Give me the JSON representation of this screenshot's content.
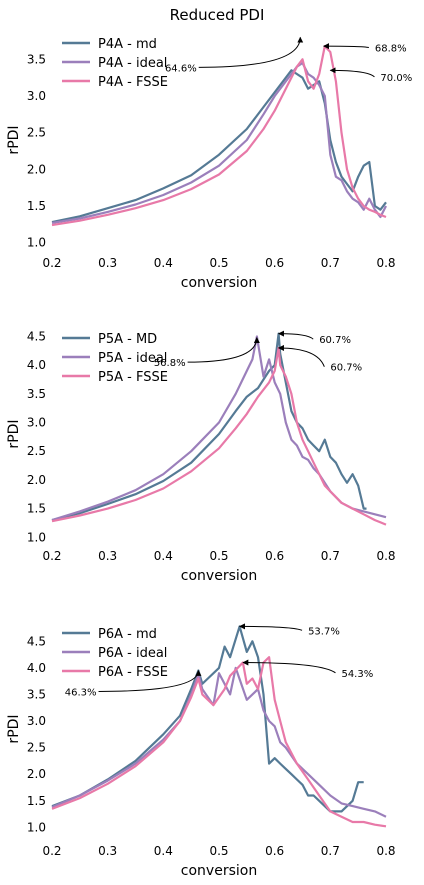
{
  "figure_title": "Reduced PDI",
  "colors": {
    "md": "#557a95",
    "ideal": "#9b7fbb",
    "fsse": "#e879a8"
  },
  "chart_data": [
    {
      "type": "line",
      "xlabel": "conversion",
      "ylabel": "rPDI",
      "xlim": [
        0.2,
        0.8
      ],
      "ylim": [
        0.9,
        3.9
      ],
      "xticks": [
        0.2,
        0.3,
        0.4,
        0.5,
        0.6,
        0.7,
        0.8
      ],
      "xtick_labels": [
        "0.2",
        "0.3",
        "0.4",
        "0.5",
        "0.6",
        "0.7",
        "0.8"
      ],
      "yticks": [
        1.0,
        1.5,
        2.0,
        2.5,
        3.0,
        3.5
      ],
      "ytick_labels": [
        "1.0",
        "1.5",
        "2.0",
        "2.5",
        "3.0",
        "3.5"
      ],
      "grid": false,
      "legend_position": "top-left",
      "series": [
        {
          "name": "P4A - md",
          "color_key": "md",
          "x": [
            0.2,
            0.25,
            0.3,
            0.35,
            0.4,
            0.45,
            0.5,
            0.55,
            0.58,
            0.6,
            0.62,
            0.63,
            0.64,
            0.65,
            0.66,
            0.67,
            0.68,
            0.69,
            0.7,
            0.71,
            0.72,
            0.73,
            0.74,
            0.75,
            0.76,
            0.77,
            0.78,
            0.79,
            0.8
          ],
          "y": [
            1.28,
            1.36,
            1.47,
            1.58,
            1.74,
            1.92,
            2.2,
            2.55,
            2.85,
            3.05,
            3.25,
            3.35,
            3.3,
            3.25,
            3.1,
            3.15,
            3.2,
            2.9,
            2.4,
            2.1,
            1.9,
            1.8,
            1.7,
            1.9,
            2.05,
            2.1,
            1.5,
            1.45,
            1.55
          ]
        },
        {
          "name": "P4A - ideal",
          "color_key": "ideal",
          "x": [
            0.2,
            0.25,
            0.3,
            0.35,
            0.4,
            0.45,
            0.5,
            0.55,
            0.58,
            0.6,
            0.62,
            0.63,
            0.64,
            0.65,
            0.66,
            0.67,
            0.68,
            0.69,
            0.7,
            0.71,
            0.72,
            0.73,
            0.74,
            0.75,
            0.76,
            0.77,
            0.78,
            0.79,
            0.8
          ],
          "y": [
            1.27,
            1.33,
            1.42,
            1.52,
            1.65,
            1.82,
            2.05,
            2.4,
            2.75,
            3.0,
            3.2,
            3.3,
            3.4,
            3.45,
            3.3,
            3.25,
            3.15,
            3.0,
            2.2,
            1.9,
            1.85,
            1.7,
            1.6,
            1.55,
            1.45,
            1.6,
            1.45,
            1.35,
            1.5
          ]
        },
        {
          "name": "P4A - FSSE",
          "color_key": "fsse",
          "x": [
            0.2,
            0.25,
            0.3,
            0.35,
            0.4,
            0.45,
            0.5,
            0.55,
            0.58,
            0.6,
            0.62,
            0.64,
            0.65,
            0.66,
            0.67,
            0.68,
            0.69,
            0.7,
            0.71,
            0.72,
            0.73,
            0.74,
            0.75,
            0.76,
            0.77,
            0.78,
            0.79,
            0.8
          ],
          "y": [
            1.24,
            1.3,
            1.38,
            1.47,
            1.58,
            1.73,
            1.93,
            2.25,
            2.55,
            2.8,
            3.1,
            3.4,
            3.5,
            3.2,
            3.1,
            3.3,
            3.68,
            3.6,
            3.2,
            2.5,
            2.0,
            1.75,
            1.6,
            1.5,
            1.45,
            1.42,
            1.38,
            1.35
          ]
        }
      ],
      "annotations": [
        {
          "text": "64.6%",
          "x": 0.646,
          "y": 3.8,
          "text_x": 0.46,
          "text_y": 3.35
        },
        {
          "text": "68.8%",
          "x": 0.688,
          "y": 3.68,
          "text_x": 0.78,
          "text_y": 3.62
        },
        {
          "text": "70.0%",
          "x": 0.7,
          "y": 3.35,
          "text_x": 0.79,
          "text_y": 3.22
        }
      ]
    },
    {
      "type": "line",
      "xlabel": "conversion",
      "ylabel": "rPDI",
      "xlim": [
        0.2,
        0.8
      ],
      "ylim": [
        0.9,
        4.7
      ],
      "xticks": [
        0.2,
        0.3,
        0.4,
        0.5,
        0.6,
        0.7,
        0.8
      ],
      "xtick_labels": [
        "0.2",
        "0.3",
        "0.4",
        "0.5",
        "0.6",
        "0.7",
        "0.8"
      ],
      "yticks": [
        1.0,
        1.5,
        2.0,
        2.5,
        3.0,
        3.5,
        4.0,
        4.5
      ],
      "ytick_labels": [
        "1.0",
        "1.5",
        "2.0",
        "2.5",
        "3.0",
        "3.5",
        "4.0",
        "4.5"
      ],
      "grid": false,
      "legend_position": "top-left",
      "series": [
        {
          "name": "P5A - MD",
          "color_key": "md",
          "x": [
            0.2,
            0.25,
            0.3,
            0.35,
            0.4,
            0.45,
            0.5,
            0.53,
            0.55,
            0.57,
            0.58,
            0.59,
            0.6,
            0.607,
            0.61,
            0.62,
            0.63,
            0.64,
            0.65,
            0.66,
            0.67,
            0.68,
            0.69,
            0.7,
            0.71,
            0.72,
            0.73,
            0.74,
            0.75,
            0.76,
            0.765
          ],
          "y": [
            1.3,
            1.42,
            1.58,
            1.75,
            1.98,
            2.3,
            2.8,
            3.2,
            3.45,
            3.6,
            3.75,
            3.9,
            4.0,
            4.55,
            4.2,
            3.7,
            3.2,
            3.0,
            2.9,
            2.7,
            2.6,
            2.5,
            2.7,
            2.4,
            2.3,
            2.1,
            1.95,
            2.1,
            1.9,
            1.5,
            1.5
          ]
        },
        {
          "name": "P5A - ideal",
          "color_key": "ideal",
          "x": [
            0.2,
            0.25,
            0.3,
            0.35,
            0.4,
            0.45,
            0.5,
            0.53,
            0.55,
            0.56,
            0.568,
            0.58,
            0.59,
            0.6,
            0.61,
            0.62,
            0.63,
            0.64,
            0.65,
            0.66,
            0.67,
            0.68,
            0.69,
            0.7,
            0.72,
            0.74,
            0.76,
            0.78,
            0.8
          ],
          "y": [
            1.3,
            1.45,
            1.62,
            1.82,
            2.1,
            2.5,
            3.0,
            3.5,
            3.9,
            4.1,
            4.5,
            3.8,
            4.1,
            3.7,
            3.5,
            3.0,
            2.7,
            2.6,
            2.4,
            2.35,
            2.2,
            2.1,
            1.95,
            1.8,
            1.6,
            1.5,
            1.45,
            1.4,
            1.35
          ]
        },
        {
          "name": "P5A - FSSE",
          "color_key": "fsse",
          "x": [
            0.2,
            0.25,
            0.3,
            0.35,
            0.4,
            0.45,
            0.5,
            0.53,
            0.55,
            0.57,
            0.59,
            0.6,
            0.607,
            0.61,
            0.62,
            0.63,
            0.64,
            0.65,
            0.66,
            0.67,
            0.68,
            0.69,
            0.7,
            0.72,
            0.74,
            0.76,
            0.78,
            0.8
          ],
          "y": [
            1.28,
            1.38,
            1.5,
            1.65,
            1.85,
            2.15,
            2.55,
            2.9,
            3.15,
            3.45,
            3.7,
            3.9,
            4.3,
            4.0,
            3.8,
            3.5,
            3.0,
            2.7,
            2.5,
            2.3,
            2.1,
            1.9,
            1.8,
            1.6,
            1.5,
            1.4,
            1.3,
            1.22
          ]
        }
      ],
      "annotations": [
        {
          "text": "56.8%",
          "x": 0.568,
          "y": 4.48,
          "text_x": 0.44,
          "text_y": 4.0
        },
        {
          "text": "60.7%",
          "x": 0.607,
          "y": 4.55,
          "text_x": 0.68,
          "text_y": 4.4
        },
        {
          "text": "60.7%",
          "x": 0.607,
          "y": 4.3,
          "text_x": 0.7,
          "text_y": 3.92
        }
      ]
    },
    {
      "type": "line",
      "xlabel": "conversion",
      "ylabel": "rPDI",
      "xlim": [
        0.2,
        0.8
      ],
      "ylim": [
        0.8,
        4.9
      ],
      "xticks": [
        0.2,
        0.3,
        0.4,
        0.5,
        0.6,
        0.7,
        0.8
      ],
      "xtick_labels": [
        "0.2",
        "0.3",
        "0.4",
        "0.5",
        "0.6",
        "0.7",
        "0.8"
      ],
      "yticks": [
        1.0,
        1.5,
        2.0,
        2.5,
        3.0,
        3.5,
        4.0,
        4.5
      ],
      "ytick_labels": [
        "1.0",
        "1.5",
        "2.0",
        "2.5",
        "3.0",
        "3.5",
        "4.0",
        "4.5"
      ],
      "grid": false,
      "legend_position": "top-left",
      "series": [
        {
          "name": "P6A - md",
          "color_key": "md",
          "x": [
            0.2,
            0.25,
            0.3,
            0.35,
            0.4,
            0.43,
            0.45,
            0.463,
            0.47,
            0.48,
            0.5,
            0.51,
            0.52,
            0.537,
            0.55,
            0.56,
            0.57,
            0.58,
            0.59,
            0.6,
            0.61,
            0.62,
            0.63,
            0.64,
            0.65,
            0.66,
            0.67,
            0.68,
            0.7,
            0.72,
            0.74,
            0.75,
            0.76
          ],
          "y": [
            1.4,
            1.6,
            1.9,
            2.25,
            2.75,
            3.1,
            3.6,
            3.95,
            3.7,
            3.8,
            4.0,
            4.4,
            4.2,
            4.78,
            4.3,
            4.5,
            4.2,
            3.5,
            2.2,
            2.3,
            2.2,
            2.1,
            2.0,
            1.9,
            1.8,
            1.6,
            1.6,
            1.5,
            1.3,
            1.3,
            1.5,
            1.85,
            1.85
          ]
        },
        {
          "name": "P6A - ideal",
          "color_key": "ideal",
          "x": [
            0.2,
            0.25,
            0.3,
            0.35,
            0.4,
            0.43,
            0.45,
            0.463,
            0.47,
            0.49,
            0.5,
            0.52,
            0.53,
            0.55,
            0.57,
            0.58,
            0.59,
            0.6,
            0.61,
            0.62,
            0.64,
            0.66,
            0.68,
            0.7,
            0.72,
            0.74,
            0.76,
            0.78,
            0.8
          ],
          "y": [
            1.38,
            1.6,
            1.88,
            2.2,
            2.65,
            3.0,
            3.5,
            3.88,
            3.6,
            3.3,
            3.9,
            3.5,
            4.0,
            3.4,
            3.6,
            3.2,
            3.0,
            2.9,
            2.6,
            2.5,
            2.2,
            2.0,
            1.8,
            1.6,
            1.45,
            1.4,
            1.35,
            1.3,
            1.2
          ]
        },
        {
          "name": "P6A - FSSE",
          "color_key": "fsse",
          "x": [
            0.2,
            0.25,
            0.3,
            0.35,
            0.4,
            0.43,
            0.45,
            0.463,
            0.47,
            0.49,
            0.51,
            0.52,
            0.543,
            0.55,
            0.56,
            0.57,
            0.58,
            0.59,
            0.6,
            0.61,
            0.62,
            0.64,
            0.66,
            0.68,
            0.7,
            0.72,
            0.74,
            0.76,
            0.78,
            0.8
          ],
          "y": [
            1.35,
            1.55,
            1.82,
            2.15,
            2.6,
            3.0,
            3.45,
            3.8,
            3.5,
            3.3,
            3.6,
            3.85,
            4.1,
            3.7,
            3.8,
            3.6,
            4.1,
            4.2,
            3.4,
            3.0,
            2.6,
            2.2,
            1.9,
            1.6,
            1.3,
            1.2,
            1.1,
            1.1,
            1.05,
            1.02
          ]
        }
      ],
      "annotations": [
        {
          "text": "46.3%",
          "x": 0.463,
          "y": 3.95,
          "text_x": 0.28,
          "text_y": 3.5
        },
        {
          "text": "53.7%",
          "x": 0.537,
          "y": 4.78,
          "text_x": 0.66,
          "text_y": 4.65
        },
        {
          "text": "54.3%",
          "x": 0.543,
          "y": 4.1,
          "text_x": 0.72,
          "text_y": 3.85
        }
      ]
    }
  ]
}
